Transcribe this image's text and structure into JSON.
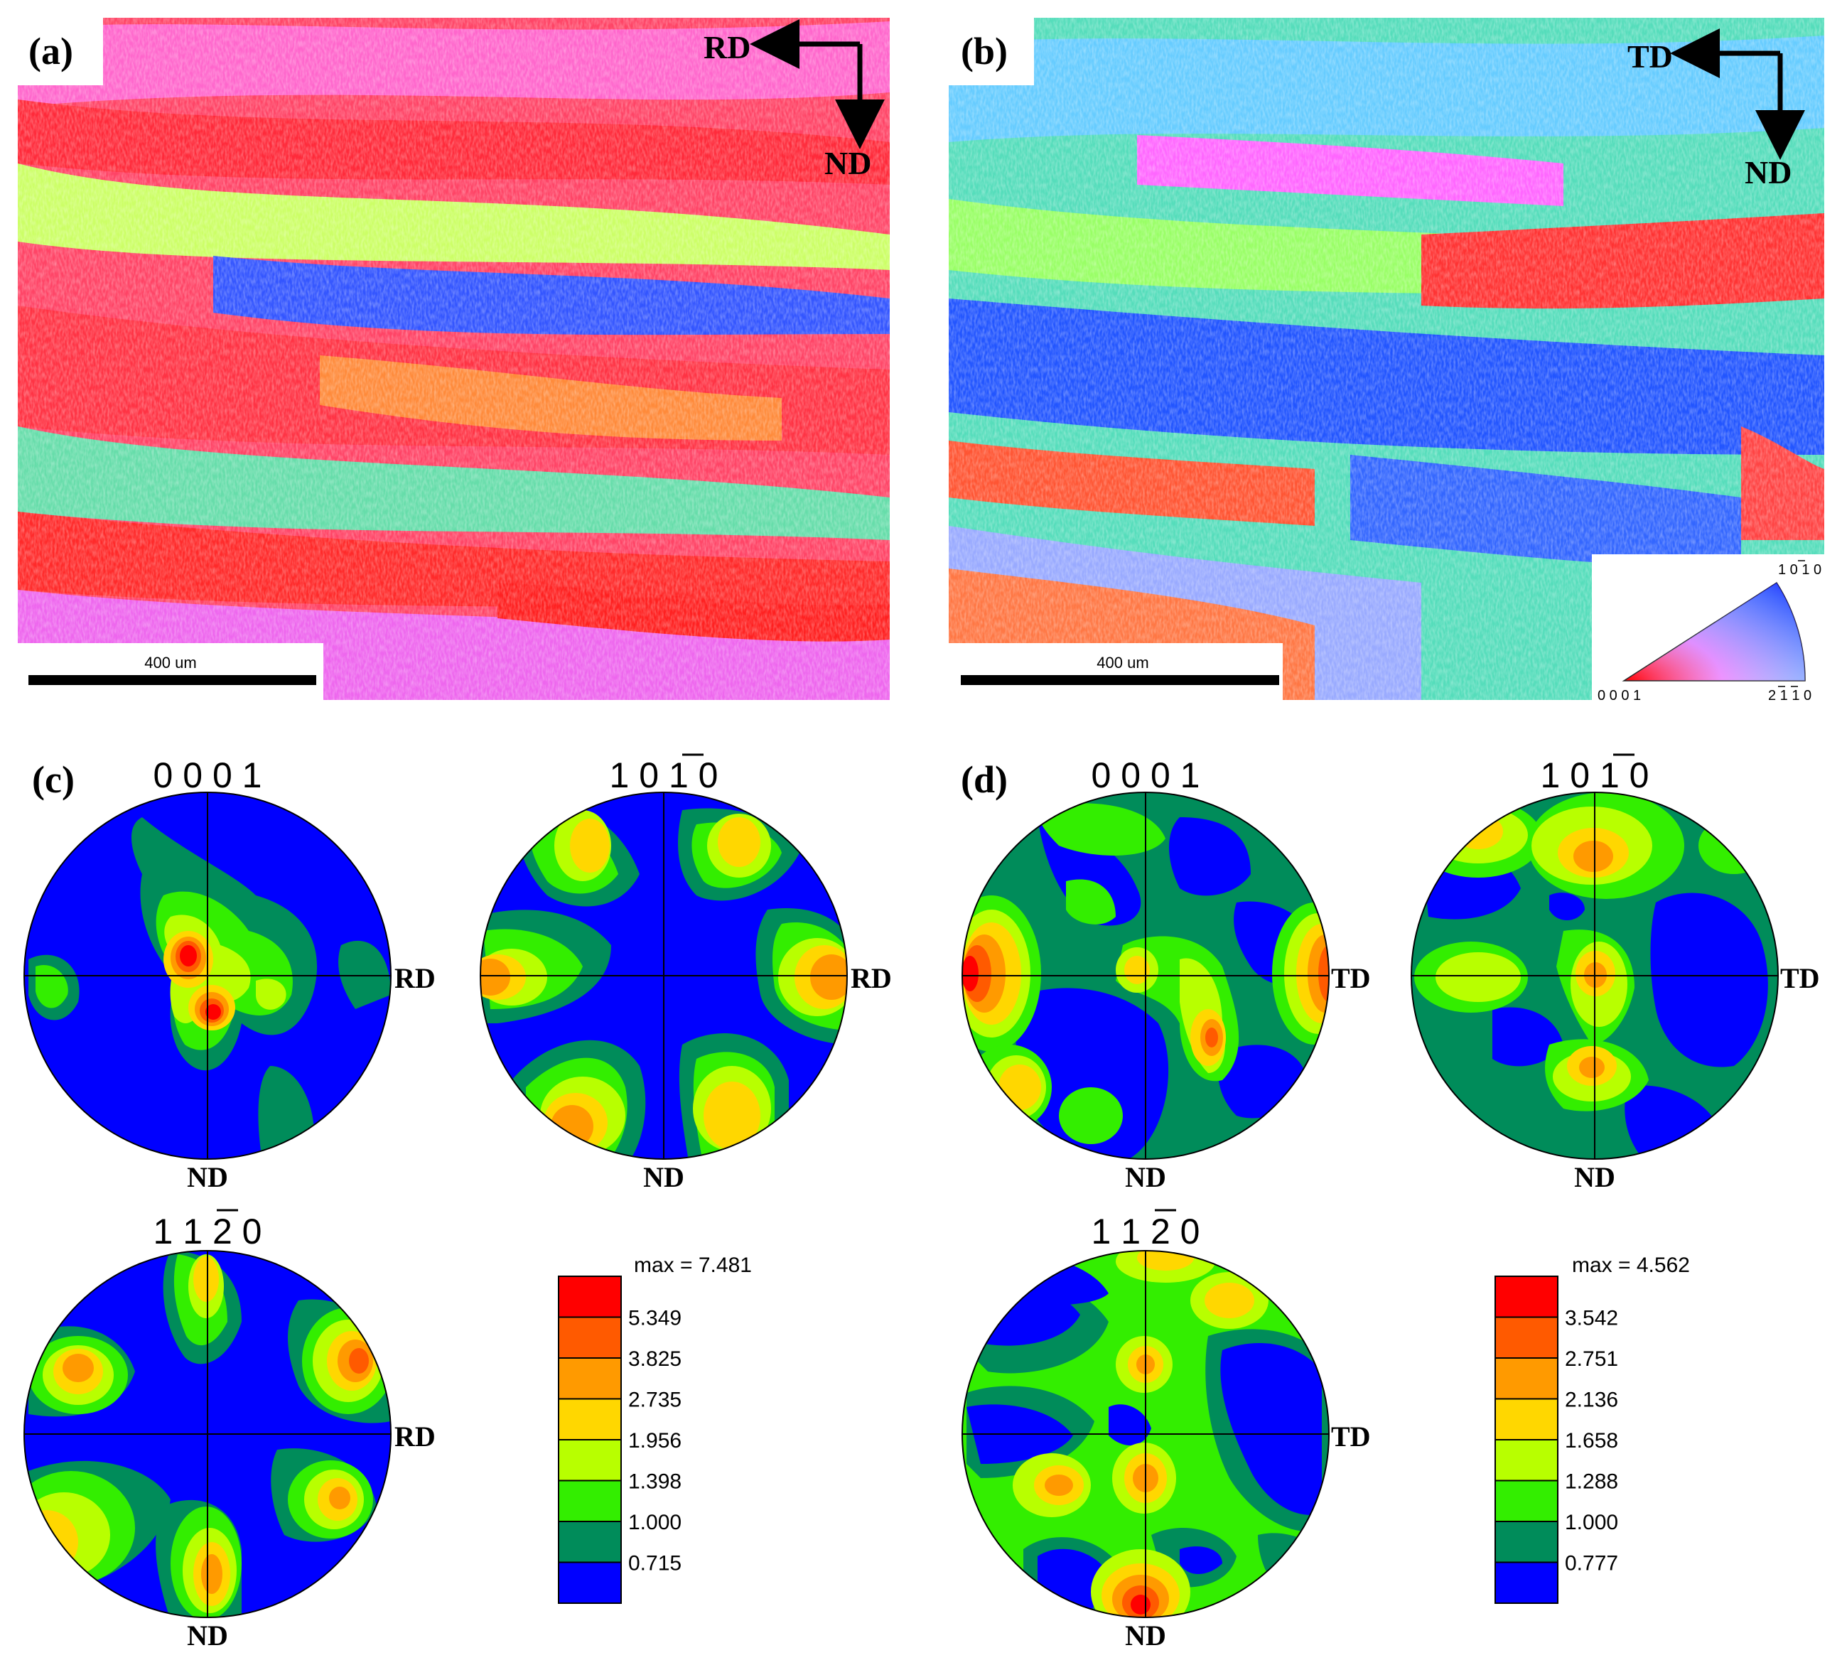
{
  "panels": {
    "a": {
      "label": "(a)",
      "dir_h": "RD",
      "dir_v": "ND",
      "scale_bar": "400 um"
    },
    "b": {
      "label": "(b)",
      "dir_h": "TD",
      "dir_v": "ND",
      "scale_bar": "400 um"
    },
    "c": {
      "label": "(c)",
      "pf_0001": "0 0 0 1",
      "pf_1010": "1 0 1 0",
      "pf_1120": "1 1 2 0",
      "right_axis": "RD",
      "bottom_axis": "ND"
    },
    "d": {
      "label": "(d)",
      "pf_0001": "0 0 0 1",
      "pf_1010": "1 0 1 0",
      "pf_1120": "1 1 2 0",
      "right_axis": "TD",
      "bottom_axis": "ND"
    }
  },
  "ipf_key": {
    "top": "1 0 1 0",
    "left": "0 0 0 1",
    "right": "2 1 1 0"
  },
  "legend_c": {
    "max": "max = 7.481",
    "levels": [
      "5.349",
      "3.825",
      "2.735",
      "1.956",
      "1.398",
      "1.000",
      "0.715"
    ],
    "colors": [
      "#ff0000",
      "#ff5a00",
      "#ff9a00",
      "#ffd700",
      "#b8ff00",
      "#33ee00",
      "#008c5a",
      "#0000ff"
    ]
  },
  "legend_d": {
    "max": "max = 4.562",
    "levels": [
      "3.542",
      "2.751",
      "2.136",
      "1.658",
      "1.288",
      "1.000",
      "0.777"
    ],
    "colors": [
      "#ff0000",
      "#ff5a00",
      "#ff9a00",
      "#ffd700",
      "#b8ff00",
      "#33ee00",
      "#008c5a",
      "#0000ff"
    ]
  }
}
